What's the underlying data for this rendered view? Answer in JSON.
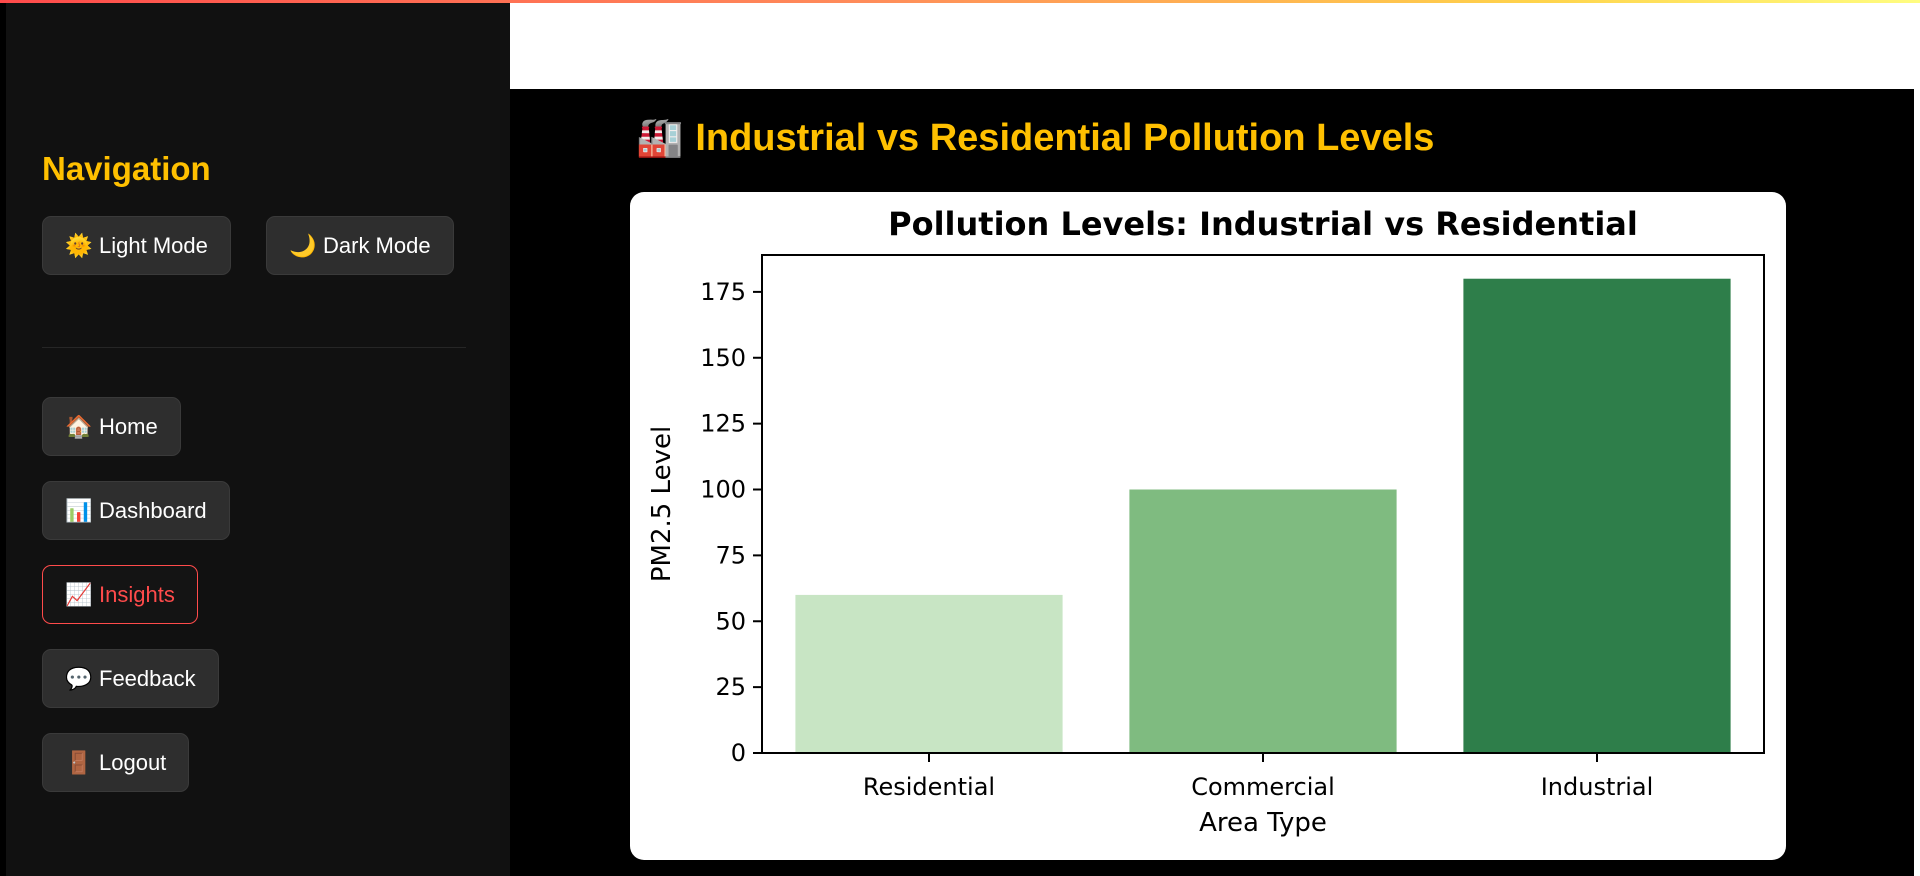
{
  "sidebar": {
    "title": "Navigation",
    "theme_buttons": [
      {
        "icon": "🌞",
        "label": "Light Mode"
      },
      {
        "icon": "🌙",
        "label": "Dark Mode"
      }
    ],
    "nav_items": [
      {
        "icon": "🏠",
        "label": "Home",
        "active": false
      },
      {
        "icon": "📊",
        "label": "Dashboard",
        "active": false
      },
      {
        "icon": "📈",
        "label": "Insights",
        "active": true
      },
      {
        "icon": "💬",
        "label": "Feedback",
        "active": false
      },
      {
        "icon": "🚪",
        "label": "Logout",
        "active": false
      }
    ]
  },
  "main": {
    "title_icon": "🏭",
    "title": "Industrial vs Residential Pollution Levels"
  },
  "colors": {
    "accent": "#ffc000",
    "active": "#ff4b4b"
  },
  "chart_data": {
    "type": "bar",
    "title": "Pollution Levels: Industrial vs Residential",
    "xlabel": "Area Type",
    "ylabel": "PM2.5 Level",
    "categories": [
      "Residential",
      "Commercial",
      "Industrial"
    ],
    "values": [
      60,
      100,
      180
    ],
    "colors": [
      "#c8e5c4",
      "#7fbb80",
      "#2e7e4a"
    ],
    "ylim": [
      0,
      189
    ],
    "yticks": [
      0,
      25,
      50,
      75,
      100,
      125,
      150,
      175
    ],
    "grid": false
  }
}
